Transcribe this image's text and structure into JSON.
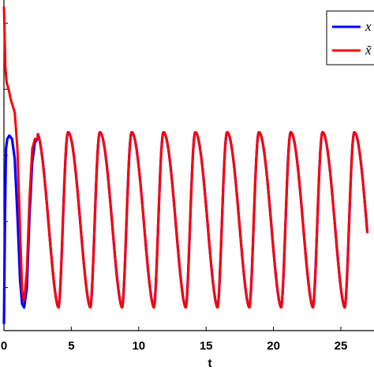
{
  "chart_data": {
    "type": "line",
    "title": "",
    "xlabel": "t",
    "ylabel": "",
    "xlim": [
      0,
      27
    ],
    "ylim": [
      0,
      1
    ],
    "x_ticks": [
      0,
      5,
      10,
      15,
      20,
      25
    ],
    "x_tick_labels": [
      "0",
      "5",
      "10",
      "15",
      "20",
      "25"
    ],
    "y_tick_positions": [
      0.13,
      0.33,
      0.53,
      0.73,
      0.93
    ],
    "grid": false,
    "legend_position": "top-right",
    "legend_entries": [
      "x",
      "x̃"
    ],
    "series": [
      {
        "name": "x",
        "color": "#0000ff",
        "x": [
          0,
          0.08,
          0.15,
          0.25,
          0.4,
          0.6,
          0.8,
          1.0,
          1.2,
          1.35,
          1.5,
          1.7,
          1.9,
          2.1,
          2.3,
          2.5
        ],
        "y": [
          0.02,
          0.35,
          0.55,
          0.58,
          0.59,
          0.58,
          0.52,
          0.35,
          0.15,
          0.08,
          0.07,
          0.13,
          0.35,
          0.51,
          0.57,
          0.58
        ]
      },
      {
        "name": "x̃",
        "color": "#ff0000",
        "x": [
          0,
          0.05,
          0.1,
          0.2,
          0.35,
          0.5,
          0.65,
          0.8,
          1.0,
          1.2,
          1.35,
          1.5,
          1.7,
          1.9,
          2.1,
          2.3,
          2.5
        ],
        "y": [
          0.98,
          0.9,
          0.8,
          0.75,
          0.73,
          0.7,
          0.68,
          0.66,
          0.55,
          0.3,
          0.12,
          0.09,
          0.18,
          0.4,
          0.55,
          0.58,
          0.58
        ]
      }
    ],
    "steady_oscillation": {
      "start_t": 2.5,
      "period": 2.36,
      "phase_peak_t": 2.4,
      "max": 0.6,
      "min": 0.07
    }
  },
  "colors": {
    "x": "#0000ff",
    "x_tilde": "#ff0000"
  }
}
